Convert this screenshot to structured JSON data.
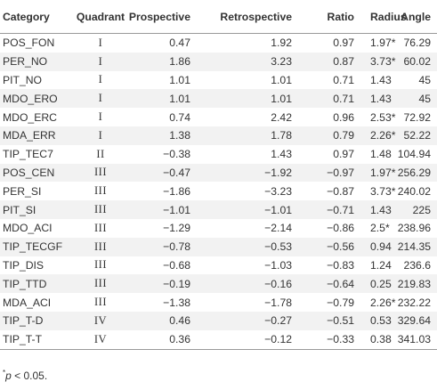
{
  "table": {
    "headers": {
      "category": "Category",
      "quadrant": "Quadrant",
      "prospective": "Prospective",
      "retrospective": "Retrospective",
      "ratio": "Ratio",
      "radius": "Radius",
      "angle": "Angle"
    },
    "rows": [
      {
        "category": "POS_FON",
        "quadrant": "I",
        "prospective": "0.47",
        "retrospective": "1.92",
        "ratio": "0.97",
        "radius": "1.97*",
        "angle": "76.29"
      },
      {
        "category": "PER_NO",
        "quadrant": "I",
        "prospective": "1.86",
        "retrospective": "3.23",
        "ratio": "0.87",
        "radius": "3.73*",
        "angle": "60.02"
      },
      {
        "category": "PIT_NO",
        "quadrant": "I",
        "prospective": "1.01",
        "retrospective": "1.01",
        "ratio": "0.71",
        "radius": "1.43",
        "angle": "45"
      },
      {
        "category": "MDO_ERO",
        "quadrant": "I",
        "prospective": "1.01",
        "retrospective": "1.01",
        "ratio": "0.71",
        "radius": "1.43",
        "angle": "45"
      },
      {
        "category": "MDO_ERC",
        "quadrant": "I",
        "prospective": "0.74",
        "retrospective": "2.42",
        "ratio": "0.96",
        "radius": "2.53*",
        "angle": "72.92"
      },
      {
        "category": "MDA_ERR",
        "quadrant": "I",
        "prospective": "1.38",
        "retrospective": "1.78",
        "ratio": "0.79",
        "radius": "2.26*",
        "angle": "52.22"
      },
      {
        "category": "TIP_TEC7",
        "quadrant": "II",
        "prospective": "−0.38",
        "retrospective": "1.43",
        "ratio": "0.97",
        "radius": "1.48",
        "angle": "104.94"
      },
      {
        "category": "POS_CEN",
        "quadrant": "III",
        "prospective": "−0.47",
        "retrospective": "−1.92",
        "ratio": "−0.97",
        "radius": "1.97*",
        "angle": "256.29"
      },
      {
        "category": "PER_SI",
        "quadrant": "III",
        "prospective": "−1.86",
        "retrospective": "−3.23",
        "ratio": "−0.87",
        "radius": "3.73*",
        "angle": "240.02"
      },
      {
        "category": "PIT_SI",
        "quadrant": "III",
        "prospective": "−1.01",
        "retrospective": "−1.01",
        "ratio": "−0.71",
        "radius": "1.43",
        "angle": "225"
      },
      {
        "category": "MDO_ACI",
        "quadrant": "III",
        "prospective": "−1.29",
        "retrospective": "−2.14",
        "ratio": "−0.86",
        "radius": "2.5*",
        "angle": "238.96"
      },
      {
        "category": "TIP_TECGF",
        "quadrant": "III",
        "prospective": "−0.78",
        "retrospective": "−0.53",
        "ratio": "−0.56",
        "radius": "0.94",
        "angle": "214.35"
      },
      {
        "category": "TIP_DIS",
        "quadrant": "III",
        "prospective": "−0.68",
        "retrospective": "−1.03",
        "ratio": "−0.83",
        "radius": "1.24",
        "angle": "236.6"
      },
      {
        "category": "TIP_TTD",
        "quadrant": "III",
        "prospective": "−0.19",
        "retrospective": "−0.16",
        "ratio": "−0.64",
        "radius": "0.25",
        "angle": "219.83"
      },
      {
        "category": "MDA_ACI",
        "quadrant": "III",
        "prospective": "−1.38",
        "retrospective": "−1.78",
        "ratio": "−0.79",
        "radius": "2.26*",
        "angle": "232.22"
      },
      {
        "category": "TIP_T-D",
        "quadrant": "IV",
        "prospective": "0.46",
        "retrospective": "−0.27",
        "ratio": "−0.51",
        "radius": "0.53",
        "angle": "329.64"
      },
      {
        "category": "TIP_T-T",
        "quadrant": "IV",
        "prospective": "0.36",
        "retrospective": "−0.12",
        "ratio": "−0.33",
        "radius": "0.38",
        "angle": "341.03"
      }
    ]
  },
  "footnote": {
    "marker": "*",
    "variable": "p",
    "condition": " < 0.05."
  }
}
